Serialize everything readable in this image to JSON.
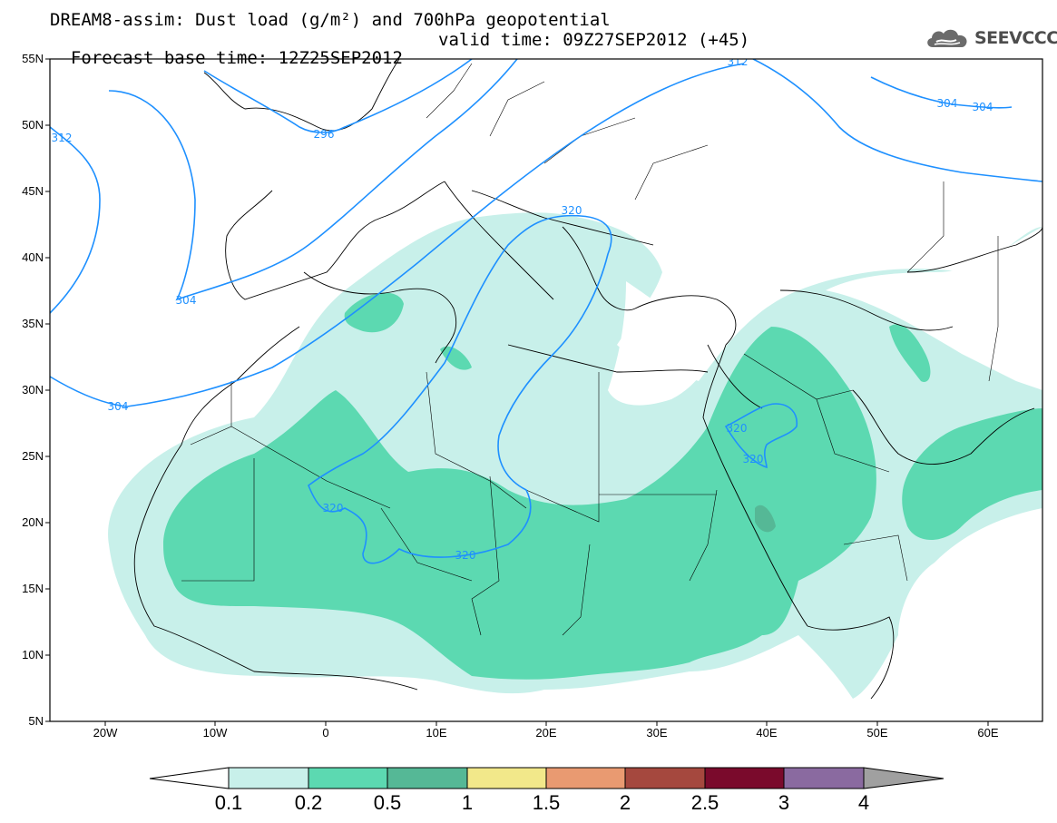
{
  "title": {
    "line1": "DREAM8-assim: Dust load (g/m²) and 700hPa geopotential",
    "line2_base": "Forecast base time: 12Z25SEP2012",
    "line2_valid": "valid time: 09Z27SEP2012 (+45)"
  },
  "logo": {
    "text": "SEEVCCC",
    "icon": "cloud-icon"
  },
  "axes": {
    "lat_labels": [
      "55N",
      "50N",
      "45N",
      "40N",
      "35N",
      "30N",
      "25N",
      "20N",
      "15N",
      "10N",
      "5N"
    ],
    "lon_labels": [
      "20W",
      "10W",
      "0",
      "10E",
      "20E",
      "30E",
      "40E",
      "50E",
      "60E"
    ]
  },
  "contours": {
    "labels": [
      "312",
      "296",
      "304",
      "304",
      "304",
      "320",
      "304",
      "312",
      "320",
      "320",
      "320",
      "320",
      "320"
    ]
  },
  "colorbar": {
    "labels": [
      "0.1",
      "0.2",
      "0.5",
      "1",
      "1.5",
      "2",
      "2.5",
      "3",
      "4"
    ],
    "colors": [
      "#c8f0ea",
      "#8ee6cf",
      "#5cd9b1",
      "#55b896",
      "#f2e88a",
      "#e99a71",
      "#d4725a",
      "#a5483e",
      "#7a0a2c",
      "#8a6aa0",
      "#a0a0a0"
    ]
  },
  "map_colors": {
    "dust_light": "#c8f0ea",
    "dust_medium": "#5cd9b1",
    "dust_dark": "#55b896",
    "contour": "#1e90ff"
  }
}
